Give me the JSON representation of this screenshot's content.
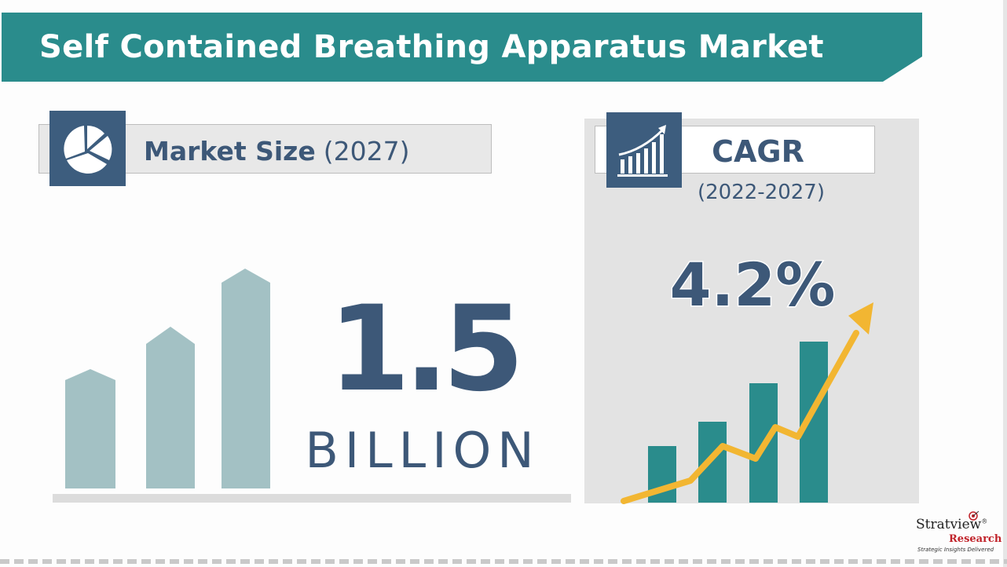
{
  "banner": {
    "title": "Self Contained Breathing Apparatus Market",
    "color": "#2a8c8c"
  },
  "market_size": {
    "label": "Market Size",
    "year": "(2027)",
    "value": "1.5",
    "unit": "BILLION",
    "icon": "pie-chart-icon",
    "bar_color": "#a3c1c4"
  },
  "cagr": {
    "label": "CAGR",
    "period": "(2022-2027)",
    "value": "4.2%",
    "icon": "bar-chart-growth-icon",
    "bar_color": "#2a8c8c",
    "arrow_color": "#f2b632"
  },
  "logo": {
    "name": "Stratview",
    "registered": "®",
    "sub": "Research",
    "tagline": "Strategic Insights Delivered"
  },
  "colors": {
    "navy": "#3d5878",
    "icon_bg": "#3d5d7e",
    "panel_bg": "#e3e3e3"
  }
}
